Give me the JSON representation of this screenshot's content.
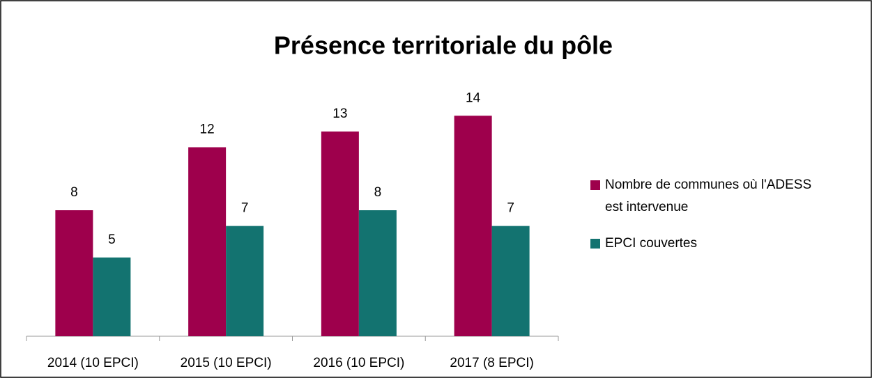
{
  "chart_data": {
    "type": "bar",
    "title": "Présence territoriale du pôle",
    "categories": [
      "2014 (10 EPCI)",
      "2015 (10 EPCI)",
      "2016 (10 EPCI)",
      "2017 (8 EPCI)"
    ],
    "series": [
      {
        "name": "Nombre de communes où l'ADESS est intervenue",
        "color": "#9e004c",
        "values": [
          8,
          12,
          13,
          14
        ]
      },
      {
        "name": "EPCI couvertes",
        "color": "#137370",
        "values": [
          5,
          7,
          8,
          7
        ]
      }
    ],
    "ylim": [
      0,
      16
    ],
    "legend": "right"
  }
}
